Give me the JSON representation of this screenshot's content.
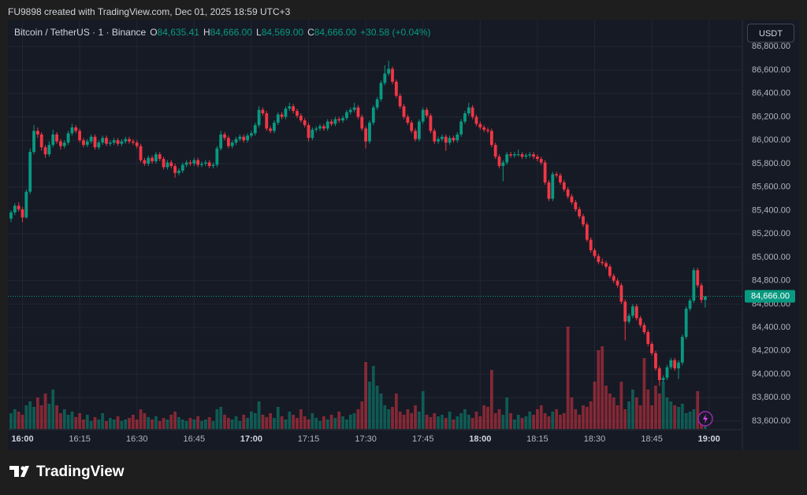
{
  "header": {
    "caption": "FU9898 created with TradingView.com, Dec 01, 2025 18:59 UTC+3"
  },
  "legend": {
    "symbol": "Bitcoin / TetherUS · 1 · Binance",
    "o_label": "O",
    "open": "84,635.41",
    "h_label": "H",
    "high": "84,666.00",
    "l_label": "L",
    "low": "84,569.00",
    "c_label": "C",
    "close": "84,666.00",
    "change": "+30.58 (+0.04%)"
  },
  "currency_button": "USDT",
  "logo": "TradingView",
  "chart_data": {
    "type": "candlestick",
    "up_color": "#089981",
    "down_color": "#f23645",
    "grid": true,
    "last_price_label": "84,666.00",
    "categories": [
      null,
      null,
      null,
      "16:00",
      null,
      null,
      null,
      null,
      null,
      null,
      null,
      null,
      null,
      null,
      null,
      null,
      null,
      null,
      "16:15",
      null,
      null,
      null,
      null,
      null,
      null,
      null,
      null,
      null,
      null,
      null,
      null,
      null,
      null,
      "16:30",
      null,
      null,
      null,
      null,
      null,
      null,
      null,
      null,
      null,
      null,
      null,
      null,
      null,
      null,
      "16:45",
      null,
      null,
      null,
      null,
      null,
      null,
      null,
      null,
      null,
      null,
      null,
      null,
      null,
      null,
      "17:00",
      null,
      null,
      null,
      null,
      null,
      null,
      null,
      null,
      null,
      null,
      null,
      null,
      null,
      null,
      "17:15",
      null,
      null,
      null,
      null,
      null,
      null,
      null,
      null,
      null,
      null,
      null,
      null,
      null,
      null,
      "17:30",
      null,
      null,
      null,
      null,
      null,
      null,
      null,
      null,
      null,
      null,
      null,
      null,
      null,
      null,
      "17:45",
      null,
      null,
      null,
      null,
      null,
      null,
      null,
      null,
      null,
      null,
      null,
      null,
      null,
      null,
      "18:00",
      null,
      null,
      null,
      null,
      null,
      null,
      null,
      null,
      null,
      null,
      null,
      null,
      null,
      null,
      "18:15",
      null,
      null,
      null,
      null,
      null,
      null,
      null,
      null,
      null,
      null,
      null,
      null,
      null,
      null,
      "18:30",
      null,
      null,
      null,
      null,
      null,
      null,
      null,
      null,
      null,
      null,
      null,
      null,
      null,
      null,
      "18:45",
      null,
      null,
      null,
      null,
      null,
      null,
      null,
      null,
      null,
      null,
      null,
      null,
      null,
      null,
      "19:00"
    ],
    "ohlc": [
      [
        85330,
        85400,
        85300,
        85383
      ],
      [
        85383,
        85460,
        85360,
        85440
      ],
      [
        85440,
        85470,
        85390,
        85410
      ],
      [
        85410,
        85430,
        85300,
        85340
      ],
      [
        85340,
        85580,
        85330,
        85560
      ],
      [
        85560,
        85930,
        85540,
        85900
      ],
      [
        85900,
        86130,
        85880,
        86080
      ],
      [
        86080,
        86110,
        86020,
        86050
      ],
      [
        86050,
        86070,
        85910,
        85940
      ],
      [
        85940,
        85960,
        85850,
        85880
      ],
      [
        85880,
        85990,
        85860,
        85960
      ],
      [
        85960,
        86090,
        85940,
        86050
      ],
      [
        86050,
        86070,
        85970,
        85990
      ],
      [
        85990,
        86010,
        85920,
        85950
      ],
      [
        85950,
        86000,
        85930,
        85980
      ],
      [
        85980,
        86080,
        85960,
        86060
      ],
      [
        86060,
        86140,
        86040,
        86110
      ],
      [
        86110,
        86130,
        86060,
        86080
      ],
      [
        86080,
        86100,
        85980,
        86000
      ],
      [
        86000,
        86020,
        85940,
        85960
      ],
      [
        85960,
        86010,
        85940,
        85990
      ],
      [
        85990,
        86050,
        85970,
        86030
      ],
      [
        86030,
        86050,
        85920,
        85940
      ],
      [
        85940,
        86000,
        85920,
        85980
      ],
      [
        85980,
        86040,
        85960,
        86020
      ],
      [
        86020,
        86040,
        85950,
        85970
      ],
      [
        85970,
        86000,
        85950,
        85980
      ],
      [
        85980,
        86020,
        85960,
        86000
      ],
      [
        86000,
        86020,
        85950,
        85970
      ],
      [
        85970,
        86010,
        85950,
        85990
      ],
      [
        85990,
        86030,
        85970,
        86010
      ],
      [
        86010,
        86030,
        85970,
        85990
      ],
      [
        85990,
        86010,
        85960,
        85980
      ],
      [
        85980,
        86000,
        85930,
        85950
      ],
      [
        85950,
        85970,
        85810,
        85830
      ],
      [
        85830,
        85850,
        85780,
        85800
      ],
      [
        85800,
        85870,
        85780,
        85850
      ],
      [
        85850,
        85870,
        85800,
        85820
      ],
      [
        85820,
        85900,
        85800,
        85880
      ],
      [
        85880,
        85900,
        85820,
        85840
      ],
      [
        85840,
        85860,
        85750,
        85770
      ],
      [
        85770,
        85830,
        85750,
        85810
      ],
      [
        85810,
        85830,
        85760,
        85780
      ],
      [
        85780,
        85800,
        85680,
        85720
      ],
      [
        85720,
        85760,
        85700,
        85740
      ],
      [
        85740,
        85810,
        85720,
        85790
      ],
      [
        85790,
        85830,
        85770,
        85810
      ],
      [
        85810,
        85830,
        85780,
        85800
      ],
      [
        85800,
        85850,
        85780,
        85830
      ],
      [
        85830,
        85850,
        85770,
        85790
      ],
      [
        85790,
        85820,
        85770,
        85800
      ],
      [
        85800,
        85830,
        85780,
        85810
      ],
      [
        85810,
        85830,
        85760,
        85780
      ],
      [
        85780,
        85810,
        85760,
        85790
      ],
      [
        85790,
        85950,
        85770,
        85930
      ],
      [
        85930,
        86080,
        85910,
        86050
      ],
      [
        86050,
        86070,
        86000,
        86020
      ],
      [
        86020,
        86040,
        85930,
        85950
      ],
      [
        85950,
        86000,
        85930,
        85980
      ],
      [
        85980,
        86030,
        85960,
        86010
      ],
      [
        86010,
        86050,
        85990,
        86030
      ],
      [
        86030,
        86050,
        85980,
        86000
      ],
      [
        86000,
        86060,
        85980,
        86040
      ],
      [
        86040,
        86080,
        86020,
        86060
      ],
      [
        86060,
        86150,
        86040,
        86130
      ],
      [
        86130,
        86290,
        86110,
        86260
      ],
      [
        86260,
        86280,
        86210,
        86230
      ],
      [
        86230,
        86250,
        86080,
        86100
      ],
      [
        86100,
        86120,
        86060,
        86080
      ],
      [
        86080,
        86170,
        86060,
        86150
      ],
      [
        86150,
        86240,
        86130,
        86220
      ],
      [
        86220,
        86240,
        86180,
        86200
      ],
      [
        86200,
        86290,
        86180,
        86270
      ],
      [
        86270,
        86320,
        86250,
        86290
      ],
      [
        86290,
        86310,
        86230,
        86250
      ],
      [
        86250,
        86270,
        86190,
        86210
      ],
      [
        86210,
        86230,
        86150,
        86170
      ],
      [
        86170,
        86190,
        86110,
        86130
      ],
      [
        86130,
        86150,
        85990,
        86020
      ],
      [
        86020,
        86110,
        86000,
        86090
      ],
      [
        86090,
        86120,
        86070,
        86100
      ],
      [
        86100,
        86140,
        86080,
        86120
      ],
      [
        86120,
        86140,
        86080,
        86100
      ],
      [
        86100,
        86180,
        86080,
        86160
      ],
      [
        86160,
        86180,
        86120,
        86140
      ],
      [
        86140,
        86200,
        86120,
        86180
      ],
      [
        86180,
        86200,
        86150,
        86170
      ],
      [
        86170,
        86210,
        86150,
        86190
      ],
      [
        86190,
        86260,
        86170,
        86240
      ],
      [
        86240,
        86280,
        86220,
        86260
      ],
      [
        86260,
        86320,
        86240,
        86280
      ],
      [
        86280,
        86300,
        86180,
        86200
      ],
      [
        86200,
        86220,
        86080,
        86100
      ],
      [
        86100,
        86120,
        85930,
        85990
      ],
      [
        85990,
        86170,
        85970,
        86150
      ],
      [
        86150,
        86300,
        86130,
        86280
      ],
      [
        86280,
        86370,
        86260,
        86350
      ],
      [
        86350,
        86510,
        86330,
        86490
      ],
      [
        86490,
        86640,
        86470,
        86570
      ],
      [
        86570,
        86680,
        86550,
        86610
      ],
      [
        86610,
        86630,
        86480,
        86500
      ],
      [
        86500,
        86520,
        86360,
        86380
      ],
      [
        86380,
        86400,
        86270,
        86290
      ],
      [
        86290,
        86310,
        86180,
        86200
      ],
      [
        86200,
        86220,
        86130,
        86150
      ],
      [
        86150,
        86170,
        86060,
        86080
      ],
      [
        86080,
        86100,
        85990,
        86010
      ],
      [
        86010,
        86180,
        85990,
        86160
      ],
      [
        86160,
        86280,
        86140,
        86260
      ],
      [
        86260,
        86280,
        86190,
        86210
      ],
      [
        86210,
        86230,
        86060,
        86080
      ],
      [
        86080,
        86100,
        85970,
        85990
      ],
      [
        85990,
        86030,
        85970,
        86010
      ],
      [
        86010,
        86050,
        85990,
        86030
      ],
      [
        86030,
        86050,
        85910,
        85980
      ],
      [
        85980,
        86040,
        85960,
        86020
      ],
      [
        86020,
        86040,
        85980,
        86000
      ],
      [
        86000,
        86070,
        85980,
        86050
      ],
      [
        86050,
        86180,
        86030,
        86160
      ],
      [
        86160,
        86250,
        86140,
        86230
      ],
      [
        86230,
        86320,
        86210,
        86280
      ],
      [
        86280,
        86300,
        86180,
        86200
      ],
      [
        86200,
        86220,
        86120,
        86140
      ],
      [
        86140,
        86160,
        86090,
        86110
      ],
      [
        86110,
        86130,
        86070,
        86090
      ],
      [
        86090,
        86110,
        86060,
        86080
      ],
      [
        86080,
        86100,
        85940,
        85960
      ],
      [
        85960,
        85980,
        85840,
        85860
      ],
      [
        85860,
        85880,
        85760,
        85780
      ],
      [
        85780,
        85830,
        85650,
        85810
      ],
      [
        85810,
        85900,
        85790,
        85880
      ],
      [
        85880,
        85900,
        85850,
        85870
      ],
      [
        85870,
        85900,
        85850,
        85880
      ],
      [
        85880,
        85920,
        85860,
        85880
      ],
      [
        85880,
        85900,
        85840,
        85860
      ],
      [
        85860,
        85890,
        85840,
        85870
      ],
      [
        85870,
        85900,
        85850,
        85880
      ],
      [
        85880,
        85900,
        85840,
        85860
      ],
      [
        85860,
        85880,
        85820,
        85840
      ],
      [
        85840,
        85860,
        85790,
        85810
      ],
      [
        85810,
        85830,
        85620,
        85640
      ],
      [
        85640,
        85660,
        85480,
        85500
      ],
      [
        85500,
        85730,
        85480,
        85710
      ],
      [
        85710,
        85730,
        85680,
        85700
      ],
      [
        85700,
        85720,
        85620,
        85640
      ],
      [
        85640,
        85660,
        85560,
        85580
      ],
      [
        85580,
        85600,
        85500,
        85520
      ],
      [
        85520,
        85540,
        85450,
        85470
      ],
      [
        85470,
        85490,
        85390,
        85410
      ],
      [
        85410,
        85430,
        85330,
        85350
      ],
      [
        85350,
        85370,
        85260,
        85280
      ],
      [
        85280,
        85300,
        85130,
        85150
      ],
      [
        85150,
        85170,
        85040,
        85060
      ],
      [
        85060,
        85080,
        84990,
        85010
      ],
      [
        85010,
        85030,
        84940,
        84960
      ],
      [
        84960,
        84990,
        84930,
        84950
      ],
      [
        84950,
        84970,
        84900,
        84920
      ],
      [
        84920,
        84940,
        84820,
        84840
      ],
      [
        84840,
        84860,
        84780,
        84800
      ],
      [
        84800,
        84820,
        84740,
        84760
      ],
      [
        84760,
        84780,
        84600,
        84620
      ],
      [
        84620,
        84640,
        84290,
        84450
      ],
      [
        84450,
        84520,
        84430,
        84500
      ],
      [
        84500,
        84600,
        84480,
        84580
      ],
      [
        84580,
        84600,
        84460,
        84480
      ],
      [
        84480,
        84500,
        84400,
        84420
      ],
      [
        84420,
        84440,
        84340,
        84360
      ],
      [
        84360,
        84380,
        84240,
        84260
      ],
      [
        84260,
        84280,
        84160,
        84180
      ],
      [
        84180,
        84200,
        84030,
        84050
      ],
      [
        84050,
        84070,
        83900,
        83950
      ],
      [
        83950,
        83990,
        83930,
        83970
      ],
      [
        83970,
        84080,
        83950,
        84060
      ],
      [
        84060,
        84140,
        84040,
        84120
      ],
      [
        84120,
        84140,
        84030,
        84050
      ],
      [
        84050,
        84120,
        83960,
        84100
      ],
      [
        84100,
        84340,
        84080,
        84320
      ],
      [
        84320,
        84580,
        84300,
        84560
      ],
      [
        84560,
        84650,
        84540,
        84630
      ],
      [
        84630,
        84910,
        84610,
        84890
      ],
      [
        84890,
        84910,
        84740,
        84760
      ],
      [
        84760,
        84780,
        84610,
        84635.41
      ],
      [
        84635.41,
        84666,
        84569,
        84666
      ],
      null
    ],
    "volume": [
      20,
      25,
      22,
      18,
      30,
      35,
      28,
      40,
      30,
      45,
      32,
      50,
      30,
      20,
      25,
      18,
      22,
      15,
      20,
      12,
      18,
      10,
      15,
      12,
      20,
      10,
      14,
      12,
      16,
      10,
      12,
      14,
      18,
      12,
      25,
      20,
      15,
      12,
      16,
      10,
      14,
      12,
      18,
      22,
      15,
      12,
      10,
      14,
      12,
      16,
      10,
      12,
      15,
      10,
      25,
      28,
      18,
      14,
      12,
      16,
      10,
      18,
      14,
      22,
      20,
      35,
      18,
      15,
      20,
      14,
      28,
      16,
      12,
      22,
      18,
      14,
      25,
      16,
      12,
      20,
      14,
      10,
      16,
      12,
      18,
      14,
      22,
      16,
      12,
      18,
      20,
      25,
      35,
      85,
      60,
      80,
      55,
      45,
      30,
      25,
      28,
      45,
      22,
      18,
      25,
      20,
      30,
      22,
      48,
      18,
      15,
      20,
      16,
      18,
      14,
      22,
      12,
      16,
      20,
      25,
      18,
      14,
      22,
      16,
      30,
      28,
      75,
      20,
      25,
      18,
      40,
      20,
      12,
      18,
      14,
      16,
      22,
      18,
      25,
      30,
      20,
      16,
      22,
      25,
      18,
      20,
      130,
      40,
      25,
      18,
      30,
      28,
      35,
      60,
      100,
      105,
      55,
      45,
      40,
      30,
      60,
      25,
      35,
      50,
      40,
      30,
      90,
      50,
      30,
      55,
      45,
      60,
      40,
      35,
      30,
      28,
      32,
      20,
      22,
      25,
      48,
      20,
      18,
      null
    ],
    "ylim": [
      83533,
      86997
    ],
    "yticks": [
      {
        "value": 83600,
        "label": "83,600.00"
      },
      {
        "value": 83800,
        "label": "83,800.00"
      },
      {
        "value": 84000,
        "label": "84,000.00"
      },
      {
        "value": 84200,
        "label": "84,200.00"
      },
      {
        "value": 84400,
        "label": "84,400.00"
      },
      {
        "value": 84600,
        "label": "84,600.00"
      },
      {
        "value": 84800,
        "label": "84,800.00"
      },
      {
        "value": 85000,
        "label": "85,000.00"
      },
      {
        "value": 85200,
        "label": "85,200.00"
      },
      {
        "value": 85400,
        "label": "85,400.00"
      },
      {
        "value": 85600,
        "label": "85,600.00"
      },
      {
        "value": 85800,
        "label": "85,800.00"
      },
      {
        "value": 86000,
        "label": "86,000.00"
      },
      {
        "value": 86200,
        "label": "86,200.00"
      },
      {
        "value": 86400,
        "label": "86,400.00"
      },
      {
        "value": 86600,
        "label": "86,600.00"
      },
      {
        "value": 86800,
        "label": "86,800.00"
      }
    ]
  }
}
